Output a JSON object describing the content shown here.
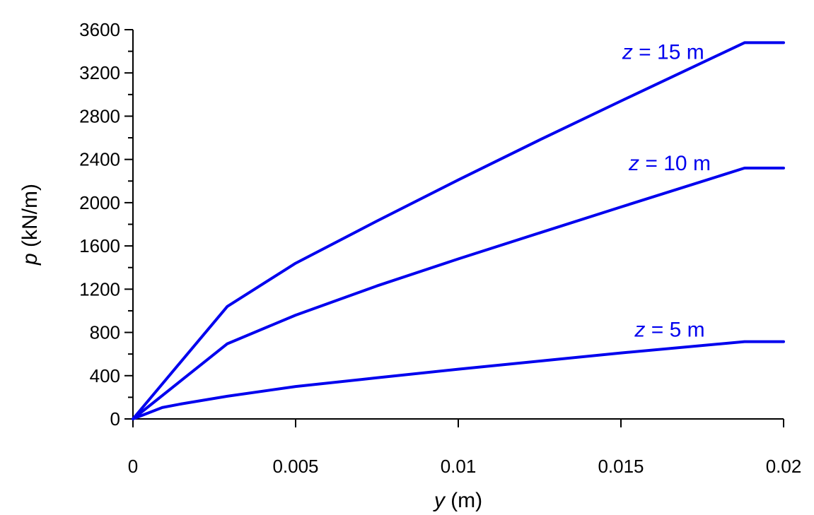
{
  "chart_data": {
    "type": "line",
    "title": "",
    "xlabel": {
      "var": "y",
      "unit": " (m)"
    },
    "ylabel": {
      "var": "p",
      "unit": " (kN/m)"
    },
    "xlim": [
      0,
      0.02
    ],
    "ylim": [
      0,
      3600
    ],
    "x_ticks": [
      0,
      0.005,
      0.01,
      0.015,
      0.02
    ],
    "x_tick_labels": [
      "0",
      "0.005",
      "0.01",
      "0.015",
      "0.02"
    ],
    "y_ticks": [
      0,
      400,
      800,
      1200,
      1600,
      2000,
      2400,
      2800,
      3200,
      3600
    ],
    "y_tick_labels": [
      "0",
      "400",
      "800",
      "1200",
      "1600",
      "2000",
      "2400",
      "2800",
      "3200",
      "3600"
    ],
    "y_minor_step": 200,
    "grid": false,
    "line_color": "#0000ee",
    "series": [
      {
        "label": {
          "var": "z",
          "rest": " = 15 m"
        },
        "label_at": [
          0.0163,
          3330
        ],
        "points": [
          [
            0,
            0
          ],
          [
            0.0029,
            1040
          ],
          [
            0.005,
            1440
          ],
          [
            0.0075,
            1830
          ],
          [
            0.01,
            2210
          ],
          [
            0.0125,
            2580
          ],
          [
            0.015,
            2940
          ],
          [
            0.0188,
            3480
          ],
          [
            0.02,
            3480
          ]
        ]
      },
      {
        "label": {
          "var": "z",
          "rest": " = 10 m"
        },
        "label_at": [
          0.0165,
          2300
        ],
        "points": [
          [
            0,
            0
          ],
          [
            0.0029,
            695
          ],
          [
            0.005,
            960
          ],
          [
            0.0075,
            1230
          ],
          [
            0.01,
            1480
          ],
          [
            0.0125,
            1720
          ],
          [
            0.015,
            1960
          ],
          [
            0.0188,
            2320
          ],
          [
            0.02,
            2320
          ]
        ]
      },
      {
        "label": {
          "var": "z",
          "rest": " = 5 m"
        },
        "label_at": [
          0.0165,
          760
        ],
        "points": [
          [
            0,
            0
          ],
          [
            0.0009,
            105
          ],
          [
            0.0015,
            140
          ],
          [
            0.0029,
            210
          ],
          [
            0.005,
            300
          ],
          [
            0.0075,
            380
          ],
          [
            0.01,
            460
          ],
          [
            0.0125,
            535
          ],
          [
            0.015,
            610
          ],
          [
            0.0188,
            715
          ],
          [
            0.02,
            715
          ]
        ]
      }
    ]
  }
}
